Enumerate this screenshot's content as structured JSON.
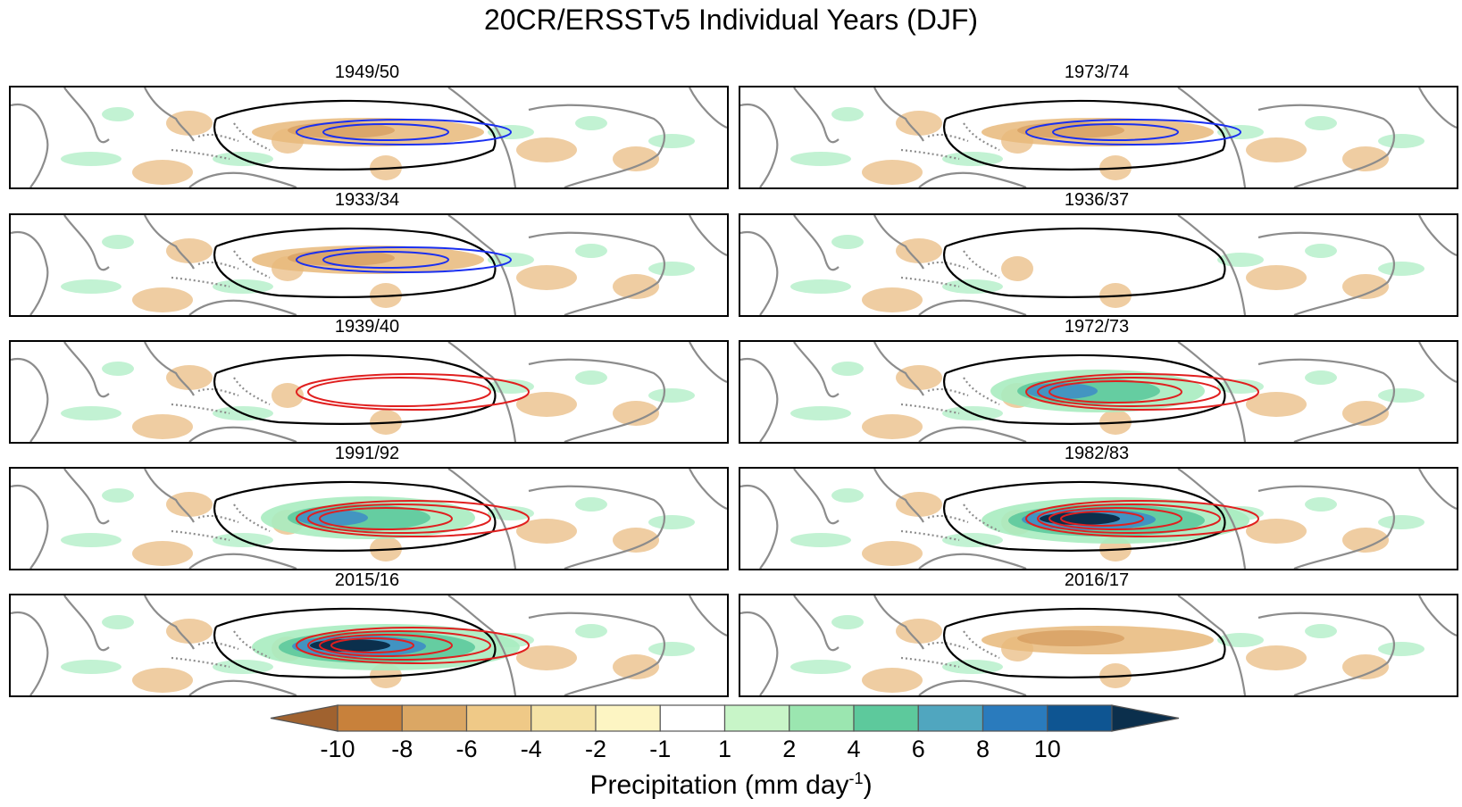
{
  "title": "20CR/ERSSTv5 Individual Years (DJF)",
  "panels": [
    {
      "label": "1949/50",
      "column": "left",
      "row": 1,
      "contours": {
        "precip": "dry",
        "sst": "cold",
        "cold_strength": 2
      }
    },
    {
      "label": "1973/74",
      "column": "right",
      "row": 1,
      "contours": {
        "precip": "dry",
        "sst": "cold",
        "cold_strength": 2
      }
    },
    {
      "label": "1933/34",
      "column": "left",
      "row": 2,
      "contours": {
        "precip": "dry",
        "sst": "cold",
        "cold_strength": 2
      }
    },
    {
      "label": "1936/37",
      "column": "right",
      "row": 2,
      "contours": {
        "precip": "neutral",
        "sst": "none",
        "cold_strength": 0
      }
    },
    {
      "label": "1939/40",
      "column": "left",
      "row": 3,
      "contours": {
        "precip": "neutral",
        "sst": "warm",
        "warm_strength": 2
      }
    },
    {
      "label": "1972/73",
      "column": "right",
      "row": 3,
      "contours": {
        "precip": "wet",
        "sst": "warm",
        "warm_strength": 3
      }
    },
    {
      "label": "1991/92",
      "column": "left",
      "row": 4,
      "contours": {
        "precip": "wet",
        "sst": "warm",
        "warm_strength": 3
      }
    },
    {
      "label": "1982/83",
      "column": "right",
      "row": 4,
      "contours": {
        "precip": "very-wet",
        "sst": "warm",
        "warm_strength": 4
      }
    },
    {
      "label": "2015/16",
      "column": "left",
      "row": 5,
      "contours": {
        "precip": "very-wet",
        "sst": "warm",
        "warm_strength": 4
      }
    },
    {
      "label": "2016/17",
      "column": "right",
      "row": 5,
      "contours": {
        "precip": "dry",
        "sst": "none",
        "cold_strength": 0
      }
    }
  ],
  "colorbar": {
    "title_main": "Precipitation (mm day",
    "title_exp": "-1",
    "title_close": ")",
    "tick_labels": [
      "-10",
      "-8",
      "-6",
      "-4",
      "-2",
      "-1",
      "1",
      "2",
      "4",
      "6",
      "8",
      "10"
    ],
    "colors": [
      "#a0622f",
      "#c8813b",
      "#dba764",
      "#efc987",
      "#f5e3a6",
      "#fdf5c3",
      "#ffffff",
      "#c8f5c8",
      "#9be6b0",
      "#5dc99c",
      "#50a6bf",
      "#2a7bbd",
      "#0e5592",
      "#0b2f4c"
    ]
  },
  "palette": {
    "land_outline": "#8c8c8c",
    "contour_black": "#000000",
    "contour_blue": "#1a2ff0",
    "contour_red": "#e01f1f",
    "dry": "#e8b87a",
    "wet_light": "#a8ecc0",
    "wet_mid": "#5dc99c",
    "wet_blue": "#3f8fc4",
    "wet_dark": "#0b2f4c"
  }
}
